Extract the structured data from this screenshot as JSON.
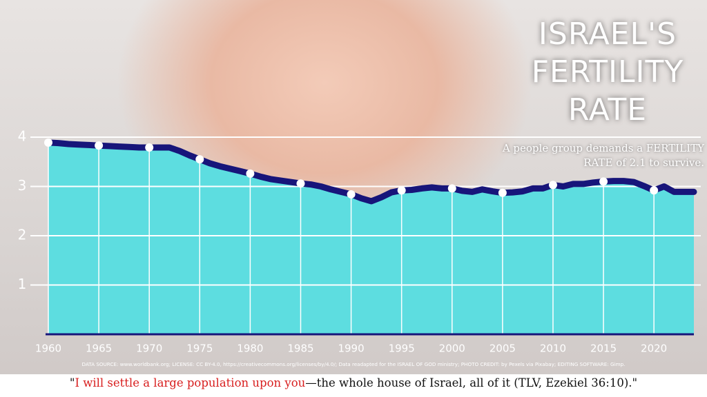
{
  "chart_data": {
    "type": "area",
    "title": "ISRAEL'S FERTILITY RATE",
    "subtitle": "A people group demands a FERTILITY RATE of 2.1 to survive.",
    "source": "DATA SOURCE: www.worldbank.org; LICENSE: CC BY-4.0, https://creativecommons.org/licenses/by/4.0/; Data readapted for the ISRAEL OF GOD ministry; PHOTO CREDIT: by Pexels via Pixabay; EDITING SOFTWARE: Gimp.",
    "quote": {
      "open": "\"",
      "highlight": "I will settle a large population upon you",
      "rest": "—the whole house of Israel, all of it (TLV, Ezekiel 36:10).\""
    },
    "x": [
      1960,
      1961,
      1962,
      1963,
      1964,
      1965,
      1966,
      1967,
      1968,
      1969,
      1970,
      1971,
      1972,
      1973,
      1974,
      1975,
      1976,
      1977,
      1978,
      1979,
      1980,
      1981,
      1982,
      1983,
      1984,
      1985,
      1986,
      1987,
      1988,
      1989,
      1990,
      1991,
      1992,
      1993,
      1994,
      1995,
      1996,
      1997,
      1998,
      1999,
      2000,
      2001,
      2002,
      2003,
      2004,
      2005,
      2006,
      2007,
      2008,
      2009,
      2010,
      2011,
      2012,
      2013,
      2014,
      2015,
      2016,
      2017,
      2018,
      2019,
      2020,
      2021,
      2022,
      2023
    ],
    "values": [
      3.89,
      3.88,
      3.86,
      3.85,
      3.84,
      3.83,
      3.82,
      3.81,
      3.8,
      3.79,
      3.79,
      3.79,
      3.79,
      3.72,
      3.63,
      3.55,
      3.47,
      3.41,
      3.36,
      3.31,
      3.26,
      3.2,
      3.15,
      3.12,
      3.09,
      3.06,
      3.04,
      3.0,
      2.94,
      2.89,
      2.84,
      2.76,
      2.7,
      2.78,
      2.88,
      2.92,
      2.93,
      2.96,
      2.98,
      2.96,
      2.96,
      2.91,
      2.89,
      2.94,
      2.9,
      2.87,
      2.88,
      2.9,
      2.96,
      2.96,
      3.03,
      3.0,
      3.05,
      3.05,
      3.08,
      3.1,
      3.11,
      3.11,
      3.09,
      3.01,
      2.92,
      3.0,
      2.89,
      2.89
    ],
    "xlim": [
      1960,
      2023
    ],
    "xticks": [
      1960,
      1965,
      1970,
      1975,
      1980,
      1985,
      1990,
      1995,
      2000,
      2005,
      2010,
      2015,
      2020
    ],
    "ylim": [
      0,
      4
    ],
    "yticks": [
      1,
      2,
      3,
      4
    ],
    "grid": true,
    "area_color": "#5ddde0",
    "line_color": "#17157a",
    "marker_color": "#ffffff"
  }
}
